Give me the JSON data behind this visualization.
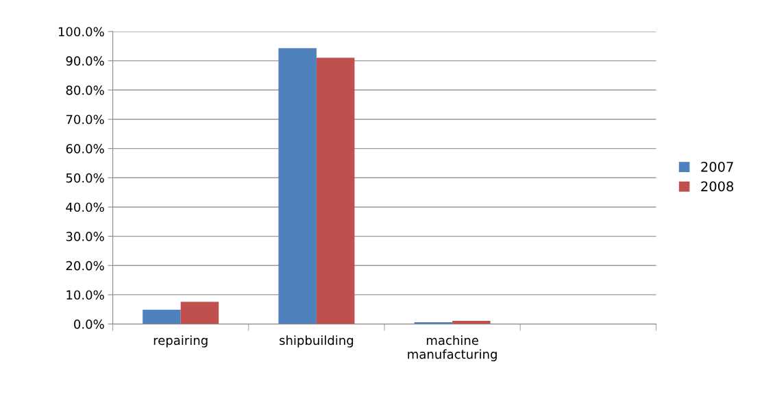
{
  "chart_data": {
    "type": "bar",
    "categories": [
      "repairing",
      "shipbuilding",
      "machine\nmanufacturing",
      null
    ],
    "series": [
      {
        "name": "2007",
        "color": "#4f81bd",
        "values": [
          4.9,
          94.3,
          0.6,
          null
        ]
      },
      {
        "name": "2008",
        "color": "#c0504d",
        "values": [
          7.6,
          91.0,
          1.1,
          null
        ]
      }
    ],
    "ylim": [
      0,
      100
    ],
    "yticks": [
      {
        "value": 0,
        "label": "0.0%"
      },
      {
        "value": 10,
        "label": "10.0%"
      },
      {
        "value": 20,
        "label": "20.0%"
      },
      {
        "value": 30,
        "label": "30.0%"
      },
      {
        "value": 40,
        "label": "40.0%"
      },
      {
        "value": 50,
        "label": "50.0%"
      },
      {
        "value": 60,
        "label": "60.0%"
      },
      {
        "value": 70,
        "label": "70.0%"
      },
      {
        "value": 80,
        "label": "80.0%"
      },
      {
        "value": 90,
        "label": "90.0%"
      },
      {
        "value": 100,
        "label": "100.0%"
      }
    ],
    "grid": "y",
    "legend": "right"
  }
}
